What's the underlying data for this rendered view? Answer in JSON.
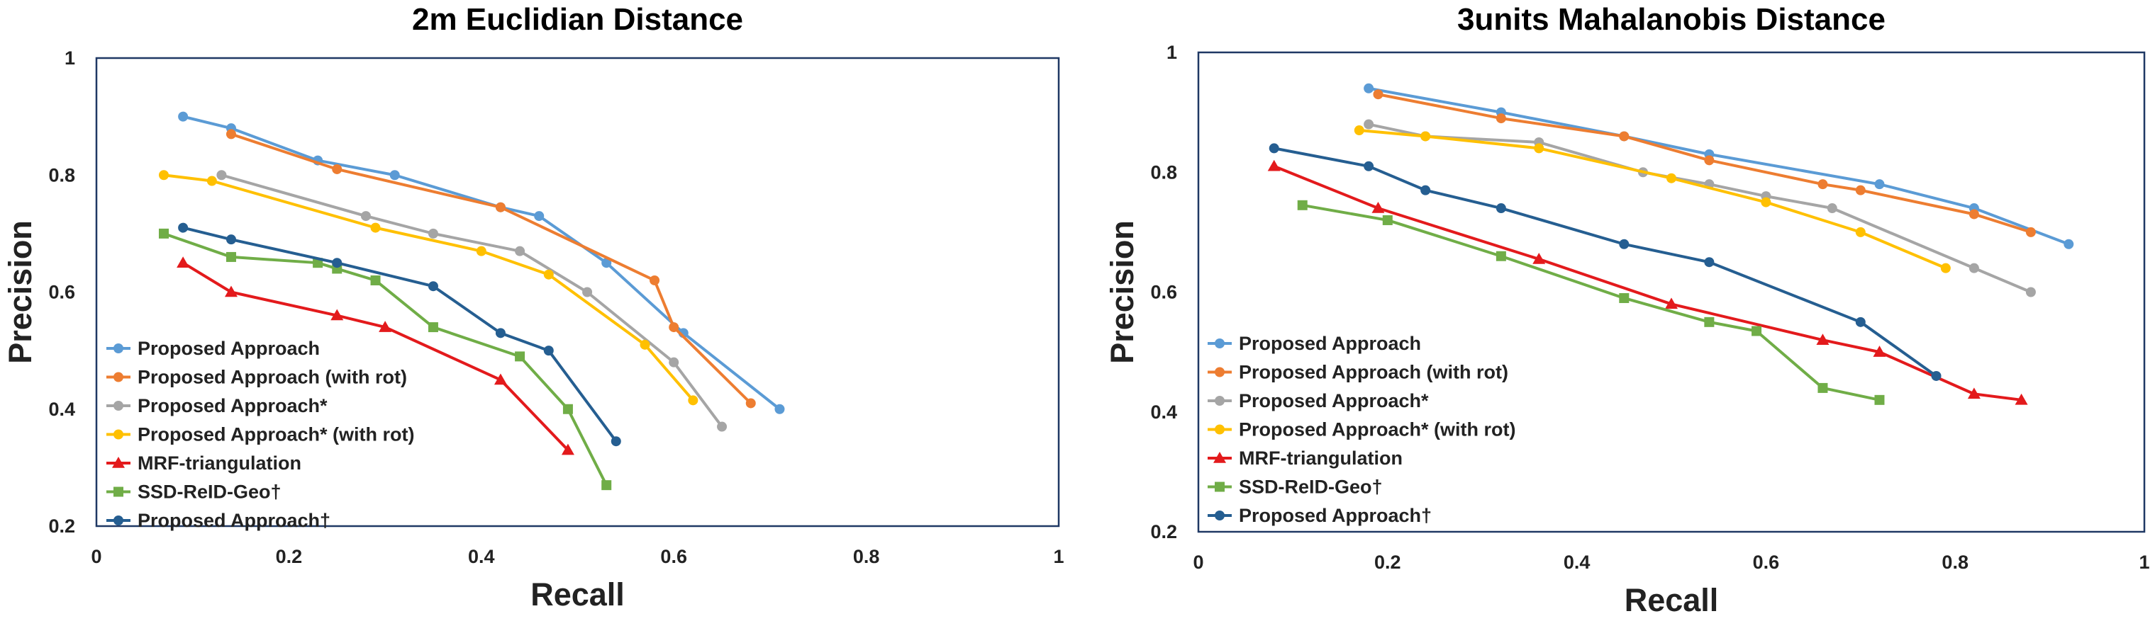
{
  "chart_data": [
    {
      "type": "line",
      "title": "2m Euclidian Distance",
      "xlabel": "Recall",
      "ylabel": "Precision",
      "xlim": [
        0,
        1
      ],
      "ylim": [
        0.2,
        1
      ],
      "xticks": [
        "0",
        "0.2",
        "0.4",
        "0.6",
        "0.8",
        "1"
      ],
      "yticks": [
        "0.2",
        "0.4",
        "0.6",
        "0.8",
        "1"
      ],
      "xtick_values": [
        0,
        0.2,
        0.4,
        0.6,
        0.8,
        1
      ],
      "ytick_values": [
        0.2,
        0.4,
        0.6,
        0.8,
        1
      ],
      "grid": false,
      "legend_position": "bottom-left",
      "series": [
        {
          "name": "Proposed Approach",
          "color": "#5B9BD5",
          "marker": "circle",
          "x": [
            0.09,
            0.14,
            0.23,
            0.31,
            0.42,
            0.46,
            0.53,
            0.61,
            0.71
          ],
          "y": [
            0.9,
            0.88,
            0.825,
            0.8,
            0.745,
            0.73,
            0.65,
            0.53,
            0.4
          ]
        },
        {
          "name": "Proposed Approach (with rot)",
          "color": "#ED7D31",
          "marker": "circle",
          "x": [
            0.14,
            0.25,
            0.42,
            0.58,
            0.6,
            0.68
          ],
          "y": [
            0.87,
            0.81,
            0.745,
            0.62,
            0.54,
            0.41
          ]
        },
        {
          "name": "Proposed Approach*",
          "color": "#A5A5A5",
          "marker": "circle",
          "x": [
            0.13,
            0.28,
            0.35,
            0.44,
            0.51,
            0.6,
            0.65
          ],
          "y": [
            0.8,
            0.73,
            0.7,
            0.67,
            0.6,
            0.48,
            0.37
          ]
        },
        {
          "name": "Proposed Approach* (with rot)",
          "color": "#FFC000",
          "marker": "circle",
          "x": [
            0.07,
            0.12,
            0.29,
            0.4,
            0.47,
            0.57,
            0.62
          ],
          "y": [
            0.8,
            0.79,
            0.71,
            0.67,
            0.63,
            0.51,
            0.415
          ]
        },
        {
          "name": "MRF-triangulation",
          "color": "#E31A1C",
          "marker": "triangle",
          "x": [
            0.09,
            0.14,
            0.25,
            0.3,
            0.42,
            0.49
          ],
          "y": [
            0.65,
            0.6,
            0.56,
            0.54,
            0.45,
            0.33
          ]
        },
        {
          "name": "SSD-ReID-Geo†",
          "color": "#70AD47",
          "marker": "square",
          "x": [
            0.07,
            0.14,
            0.23,
            0.25,
            0.29,
            0.35,
            0.44,
            0.49,
            0.53
          ],
          "y": [
            0.7,
            0.66,
            0.65,
            0.64,
            0.62,
            0.54,
            0.49,
            0.4,
            0.27
          ]
        },
        {
          "name": "Proposed Approach†",
          "color": "#255E91",
          "marker": "circle",
          "x": [
            0.09,
            0.14,
            0.25,
            0.35,
            0.42,
            0.47,
            0.54
          ],
          "y": [
            0.71,
            0.69,
            0.65,
            0.61,
            0.53,
            0.5,
            0.345
          ]
        }
      ]
    },
    {
      "type": "line",
      "title": "3units Mahalanobis Distance",
      "xlabel": "Recall",
      "ylabel": "Precision",
      "xlim": [
        0,
        1
      ],
      "ylim": [
        0.2,
        1
      ],
      "xticks": [
        "0",
        "0.2",
        "0.4",
        "0.6",
        "0.8",
        "1"
      ],
      "yticks": [
        "0.2",
        "0.4",
        "0.6",
        "0.8",
        "1"
      ],
      "xtick_values": [
        0,
        0.2,
        0.4,
        0.6,
        0.8,
        1
      ],
      "ytick_values": [
        0.2,
        0.4,
        0.6,
        0.8,
        1
      ],
      "grid": false,
      "legend_position": "bottom-left",
      "series": [
        {
          "name": "Proposed Approach",
          "color": "#5B9BD5",
          "marker": "circle",
          "x": [
            0.18,
            0.32,
            0.45,
            0.54,
            0.72,
            0.82,
            0.92
          ],
          "y": [
            0.94,
            0.9,
            0.86,
            0.83,
            0.78,
            0.74,
            0.68
          ]
        },
        {
          "name": "Proposed Approach (with rot)",
          "color": "#ED7D31",
          "marker": "circle",
          "x": [
            0.19,
            0.32,
            0.45,
            0.54,
            0.66,
            0.7,
            0.82,
            0.88
          ],
          "y": [
            0.93,
            0.89,
            0.86,
            0.82,
            0.78,
            0.77,
            0.73,
            0.7
          ]
        },
        {
          "name": "Proposed Approach*",
          "color": "#A5A5A5",
          "marker": "circle",
          "x": [
            0.18,
            0.24,
            0.36,
            0.47,
            0.54,
            0.6,
            0.67,
            0.82,
            0.88
          ],
          "y": [
            0.88,
            0.86,
            0.85,
            0.8,
            0.78,
            0.76,
            0.74,
            0.64,
            0.6
          ]
        },
        {
          "name": "Proposed Approach* (with rot)",
          "color": "#FFC000",
          "marker": "circle",
          "x": [
            0.17,
            0.24,
            0.36,
            0.5,
            0.6,
            0.7,
            0.79
          ],
          "y": [
            0.87,
            0.86,
            0.84,
            0.79,
            0.75,
            0.7,
            0.64
          ]
        },
        {
          "name": "MRF-triangulation",
          "color": "#E31A1C",
          "marker": "triangle",
          "x": [
            0.08,
            0.19,
            0.36,
            0.5,
            0.66,
            0.72,
            0.82,
            0.87
          ],
          "y": [
            0.81,
            0.74,
            0.655,
            0.58,
            0.52,
            0.5,
            0.43,
            0.42
          ]
        },
        {
          "name": "SSD-ReID-Geo†",
          "color": "#70AD47",
          "marker": "square",
          "x": [
            0.11,
            0.2,
            0.32,
            0.45,
            0.54,
            0.59,
            0.66,
            0.72
          ],
          "y": [
            0.745,
            0.72,
            0.66,
            0.59,
            0.55,
            0.535,
            0.44,
            0.42
          ]
        },
        {
          "name": "Proposed Approach†",
          "color": "#255E91",
          "marker": "circle",
          "x": [
            0.08,
            0.18,
            0.24,
            0.32,
            0.45,
            0.54,
            0.7,
            0.78
          ],
          "y": [
            0.84,
            0.81,
            0.77,
            0.74,
            0.68,
            0.65,
            0.55,
            0.46
          ]
        }
      ]
    }
  ]
}
